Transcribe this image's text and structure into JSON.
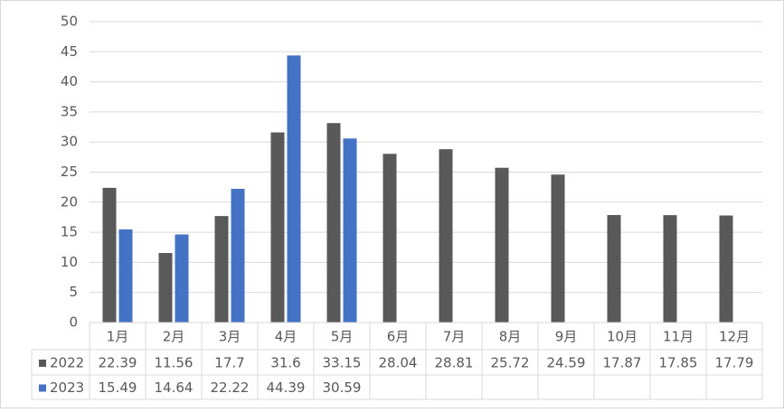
{
  "chart_data": {
    "type": "bar",
    "categories": [
      "1月",
      "2月",
      "3月",
      "4月",
      "5月",
      "6月",
      "7月",
      "8月",
      "9月",
      "10月",
      "11月",
      "12月"
    ],
    "series": [
      {
        "name": "2022",
        "color": "#595959",
        "values": [
          22.39,
          11.56,
          17.7,
          31.6,
          33.15,
          28.04,
          28.81,
          25.72,
          24.59,
          17.87,
          17.85,
          17.79
        ]
      },
      {
        "name": "2023",
        "color": "#4472c4",
        "values": [
          15.49,
          14.64,
          22.22,
          44.39,
          30.59,
          null,
          null,
          null,
          null,
          null,
          null,
          null
        ]
      }
    ],
    "ylim": [
      0,
      50
    ],
    "yticks": [
      0,
      5,
      10,
      15,
      20,
      25,
      30,
      35,
      40,
      45,
      50
    ],
    "grid": true,
    "legend": "data-table"
  }
}
